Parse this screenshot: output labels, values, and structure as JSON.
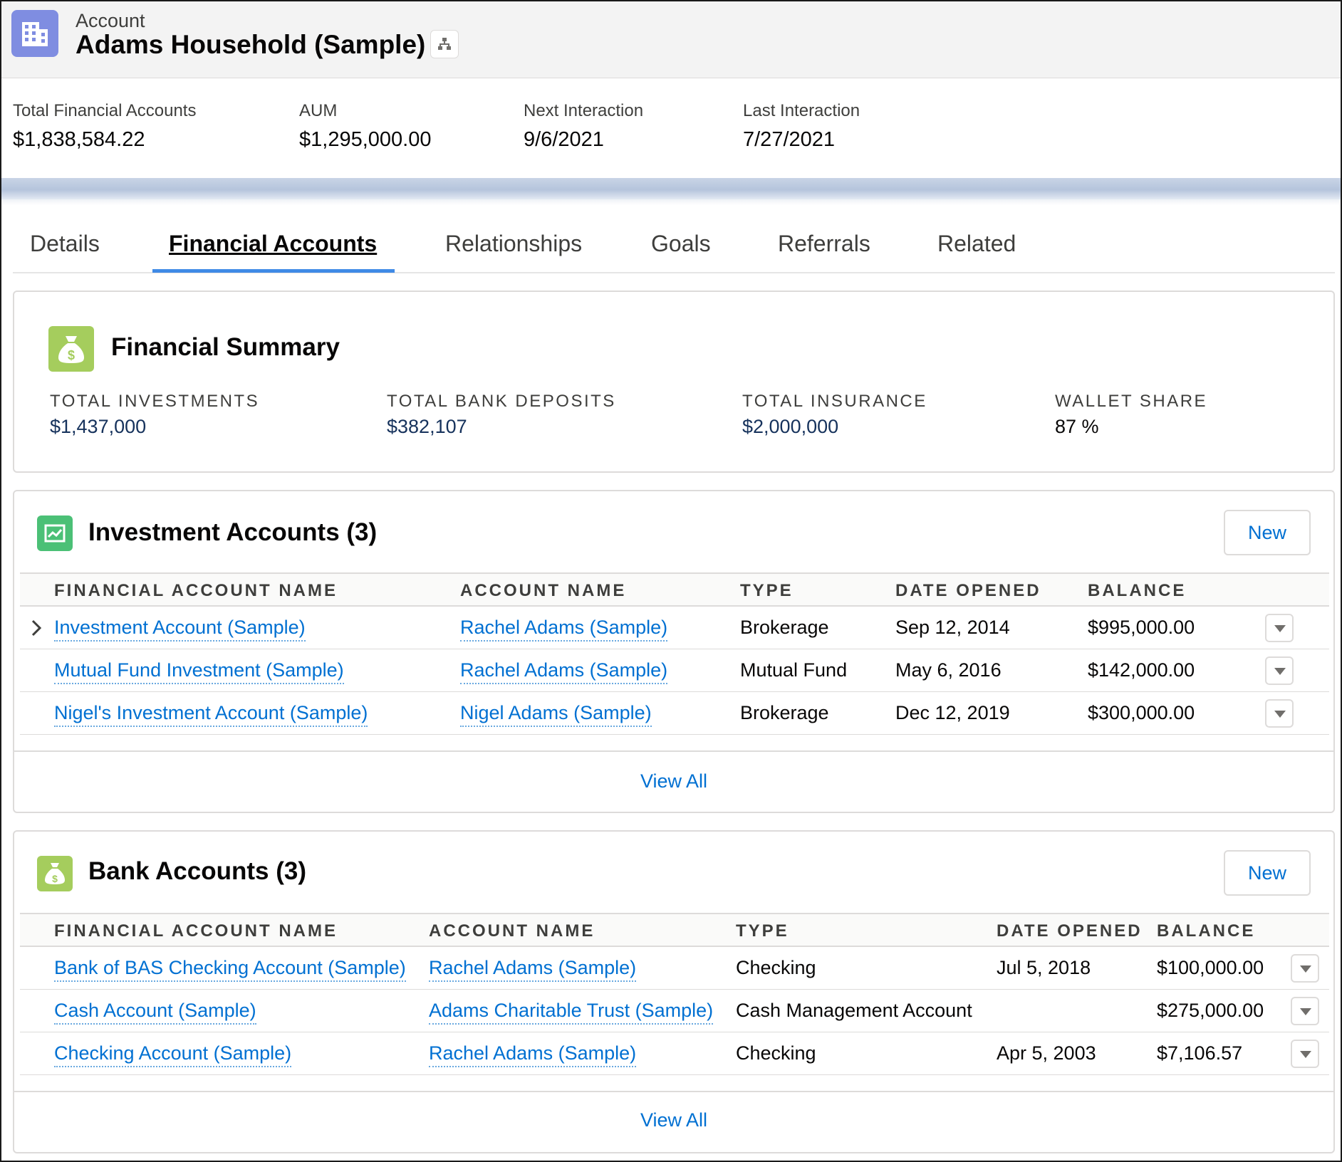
{
  "header": {
    "record_type": "Account",
    "title": "Adams Household (Sample)",
    "icon": "building-icon",
    "hierarchy_icon": "hierarchy-icon"
  },
  "highlights": [
    {
      "label": "Total Financial Accounts",
      "value": "$1,838,584.22"
    },
    {
      "label": "AUM",
      "value": "$1,295,000.00"
    },
    {
      "label": "Next Interaction",
      "value": "9/6/2021"
    },
    {
      "label": "Last Interaction",
      "value": "7/27/2021"
    }
  ],
  "tabs": [
    {
      "label": "Details"
    },
    {
      "label": "Financial Accounts",
      "active": true
    },
    {
      "label": "Relationships"
    },
    {
      "label": "Goals"
    },
    {
      "label": "Referrals"
    },
    {
      "label": "Related"
    }
  ],
  "financial_summary": {
    "title": "Financial Summary",
    "icon": "money-bag-icon",
    "icon_color": "#a5cd5d",
    "metrics": [
      {
        "label": "TOTAL INVESTMENTS",
        "value": "$1,437,000"
      },
      {
        "label": "TOTAL BANK DEPOSITS",
        "value": "$382,107"
      },
      {
        "label": "TOTAL INSURANCE",
        "value": "$2,000,000"
      },
      {
        "label": "WALLET SHARE",
        "value": "87 %"
      }
    ]
  },
  "investment_accounts": {
    "title": "Investment Accounts (3)",
    "icon": "trend-chart-icon",
    "icon_color": "#4bc076",
    "new_label": "New",
    "columns": [
      "FINANCIAL ACCOUNT NAME",
      "ACCOUNT NAME",
      "TYPE",
      "DATE OPENED",
      "BALANCE"
    ],
    "rows": [
      {
        "name": "Investment Account (Sample)",
        "account": "Rachel Adams (Sample)",
        "type": "Brokerage",
        "date": "Sep 12, 2014",
        "balance": "$995,000.00"
      },
      {
        "name": "Mutual Fund Investment (Sample)",
        "account": "Rachel Adams (Sample)",
        "type": "Mutual Fund",
        "date": "May 6, 2016",
        "balance": "$142,000.00"
      },
      {
        "name": "Nigel's Investment Account (Sample)",
        "account": "Nigel Adams (Sample)",
        "type": "Brokerage",
        "date": "Dec 12, 2019",
        "balance": "$300,000.00"
      }
    ],
    "view_all": "View All"
  },
  "bank_accounts": {
    "title": "Bank Accounts (3)",
    "icon": "money-bag-icon",
    "icon_color": "#a5cd5d",
    "new_label": "New",
    "columns": [
      "FINANCIAL ACCOUNT NAME",
      "ACCOUNT NAME",
      "TYPE",
      "DATE OPENED",
      "BALANCE"
    ],
    "rows": [
      {
        "name": "Bank of BAS Checking Account (Sample)",
        "account": "Rachel Adams (Sample)",
        "type": "Checking",
        "date": "Jul 5, 2018",
        "balance": "$100,000.00"
      },
      {
        "name": "Cash Account (Sample)",
        "account": "Adams Charitable Trust (Sample)",
        "type": "Cash Management Account",
        "date": "",
        "balance": "$275,000.00"
      },
      {
        "name": "Checking Account (Sample)",
        "account": "Rachel Adams (Sample)",
        "type": "Checking",
        "date": "Apr 5, 2003",
        "balance": "$7,106.57"
      }
    ],
    "view_all": "View All"
  }
}
